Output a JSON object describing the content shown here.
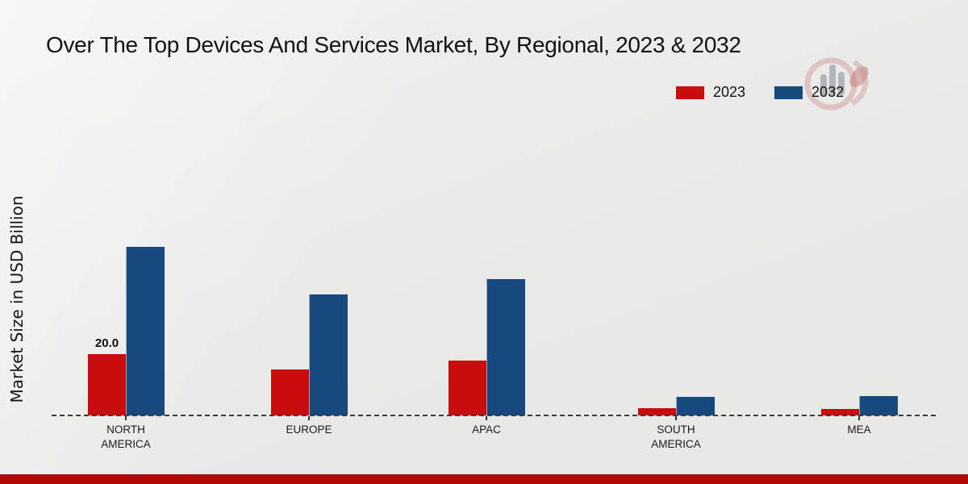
{
  "title": "Over The Top Devices And Services Market, By Regional, 2023 & 2032",
  "ylabel": "Market Size in USD Billion",
  "colors": {
    "series_2023": "#c90d0e",
    "series_2032": "#17497e",
    "footer_band": "#b30807",
    "background": "#e9e9e8",
    "baseline": "#3c3c3c"
  },
  "chart_data": {
    "type": "bar",
    "title": "Over The Top Devices And Services Market, By Regional, 2023 & 2032",
    "xlabel": "",
    "ylabel": "Market Size in USD Billion",
    "categories": [
      "NORTH AMERICA",
      "EUROPE",
      "APAC",
      "SOUTH AMERICA",
      "MEA"
    ],
    "series": [
      {
        "name": "2023",
        "color": "#c90d0e",
        "values": [
          20.0,
          15.0,
          18.0,
          2.5,
          2.0
        ],
        "point_labels": [
          "20.0",
          null,
          null,
          null,
          null
        ]
      },
      {
        "name": "2032",
        "color": "#17497e",
        "values": [
          55.0,
          39.5,
          44.5,
          6.0,
          6.2
        ],
        "point_labels": [
          null,
          null,
          null,
          null,
          null
        ]
      }
    ],
    "ylim": [
      0,
      60
    ],
    "grid": false,
    "y_axis_ticks": "none",
    "legend_position": "top-right",
    "baseline_style": "dashed"
  }
}
